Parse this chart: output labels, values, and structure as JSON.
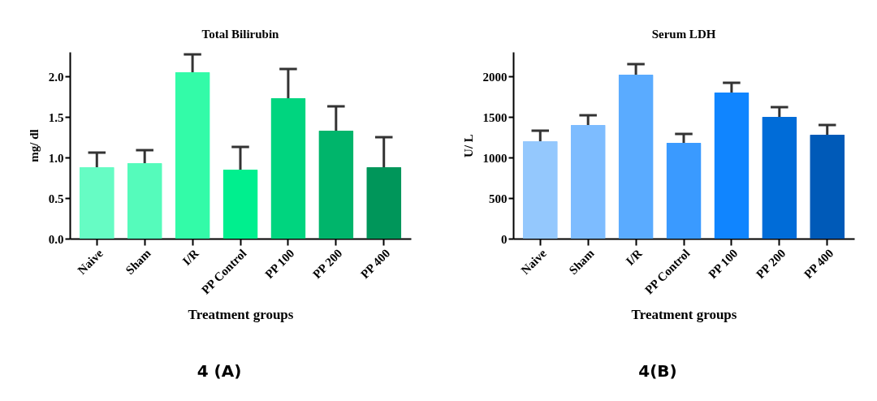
{
  "chart_data": [
    {
      "type": "bar",
      "title": "Total Bilirubin",
      "xlabel": "Treatment groups",
      "ylabel": "mg/ dl",
      "categories": [
        "Naive",
        "Sham",
        "I/R",
        "PP Control",
        "PP 100",
        "PP 200",
        "PP 400"
      ],
      "values": [
        0.88,
        0.93,
        2.05,
        0.85,
        1.73,
        1.33,
        0.88
      ],
      "errors": [
        [
          0.88,
          1.06
        ],
        [
          0.93,
          1.09
        ],
        [
          2.05,
          2.27
        ],
        [
          0.85,
          1.13
        ],
        [
          1.73,
          2.09
        ],
        [
          1.33,
          1.63
        ],
        [
          0.88,
          1.25
        ]
      ],
      "colors": [
        "#66fcc4",
        "#55fbbb",
        "#33fba8",
        "#00ef8e",
        "#00d57f",
        "#00b56b",
        "#00965a"
      ],
      "ylim": [
        0,
        2.3
      ],
      "yticks": [
        {
          "value": 0,
          "label": "0.0"
        },
        0.5,
        {
          "value": 1,
          "label": "1.0"
        },
        1.5,
        {
          "value": 2,
          "label": "2.0"
        }
      ],
      "annotations": [
        "4 (A)"
      ]
    },
    {
      "type": "bar",
      "title": "Serum LDH",
      "xlabel": "Treatment groups",
      "ylabel": "U/ L",
      "categories": [
        "Naive",
        "Sham",
        "I/R",
        "PP Control",
        "PP 100",
        "PP 200",
        "PP 400"
      ],
      "values": [
        1200,
        1400,
        2020,
        1180,
        1800,
        1500,
        1280
      ],
      "errors": [
        [
          1200,
          1330
        ],
        [
          1400,
          1520
        ],
        [
          2020,
          2150
        ],
        [
          1180,
          1290
        ],
        [
          1800,
          1920
        ],
        [
          1500,
          1620
        ],
        [
          1280,
          1400
        ]
      ],
      "colors": [
        "#94c8fd",
        "#7dbcff",
        "#5aabff",
        "#3a9aff",
        "#1085ff",
        "#006cd8",
        "#005ab8"
      ],
      "ylim": [
        0,
        2300
      ],
      "yticks": [
        0,
        500,
        1000,
        1500,
        2000
      ],
      "annotations": [
        "4(B)"
      ]
    }
  ]
}
